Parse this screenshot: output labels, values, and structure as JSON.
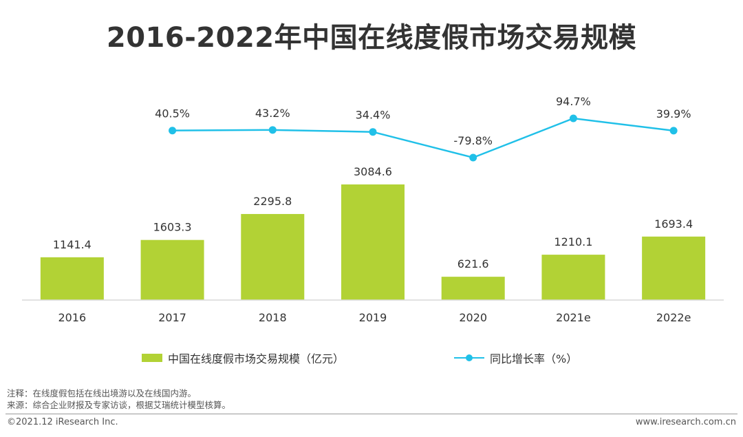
{
  "chart_data": {
    "type": "bar+line",
    "title": "2016-2022年中国在线度假市场交易规模",
    "categories": [
      "2016",
      "2017",
      "2018",
      "2019",
      "2020",
      "2021e",
      "2022e"
    ],
    "series": [
      {
        "name": "中国在线度假市场交易规模（亿元）",
        "type": "bar",
        "color": "#b2d235",
        "values": [
          1141.4,
          1603.3,
          2295.8,
          3084.6,
          621.6,
          1210.1,
          1693.4
        ],
        "labels": [
          "1141.4",
          "1603.3",
          "2295.8",
          "3084.6",
          "621.6",
          "1210.1",
          "1693.4"
        ]
      },
      {
        "name": "同比增长率（%）",
        "type": "line",
        "color": "#20c0e8",
        "values": [
          null,
          40.5,
          43.2,
          34.4,
          -79.8,
          94.7,
          39.9
        ],
        "labels": [
          "",
          "40.5%",
          "43.2%",
          "34.4%",
          "-79.8%",
          "94.7%",
          "39.9%"
        ]
      }
    ],
    "ylim_bar": [
      0,
      3084.6
    ],
    "ylim_line": [
      -79.8,
      94.7
    ],
    "legend": "bottom"
  },
  "notes": {
    "line1": "注释：在线度假包括在线出境游以及在线国内游。",
    "line2": "来源：综合企业财报及专家访谈，根据艾瑞统计模型核算。"
  },
  "footer": {
    "left": "©2021.12 iResearch Inc.",
    "right": "www.iresearch.com.cn"
  }
}
